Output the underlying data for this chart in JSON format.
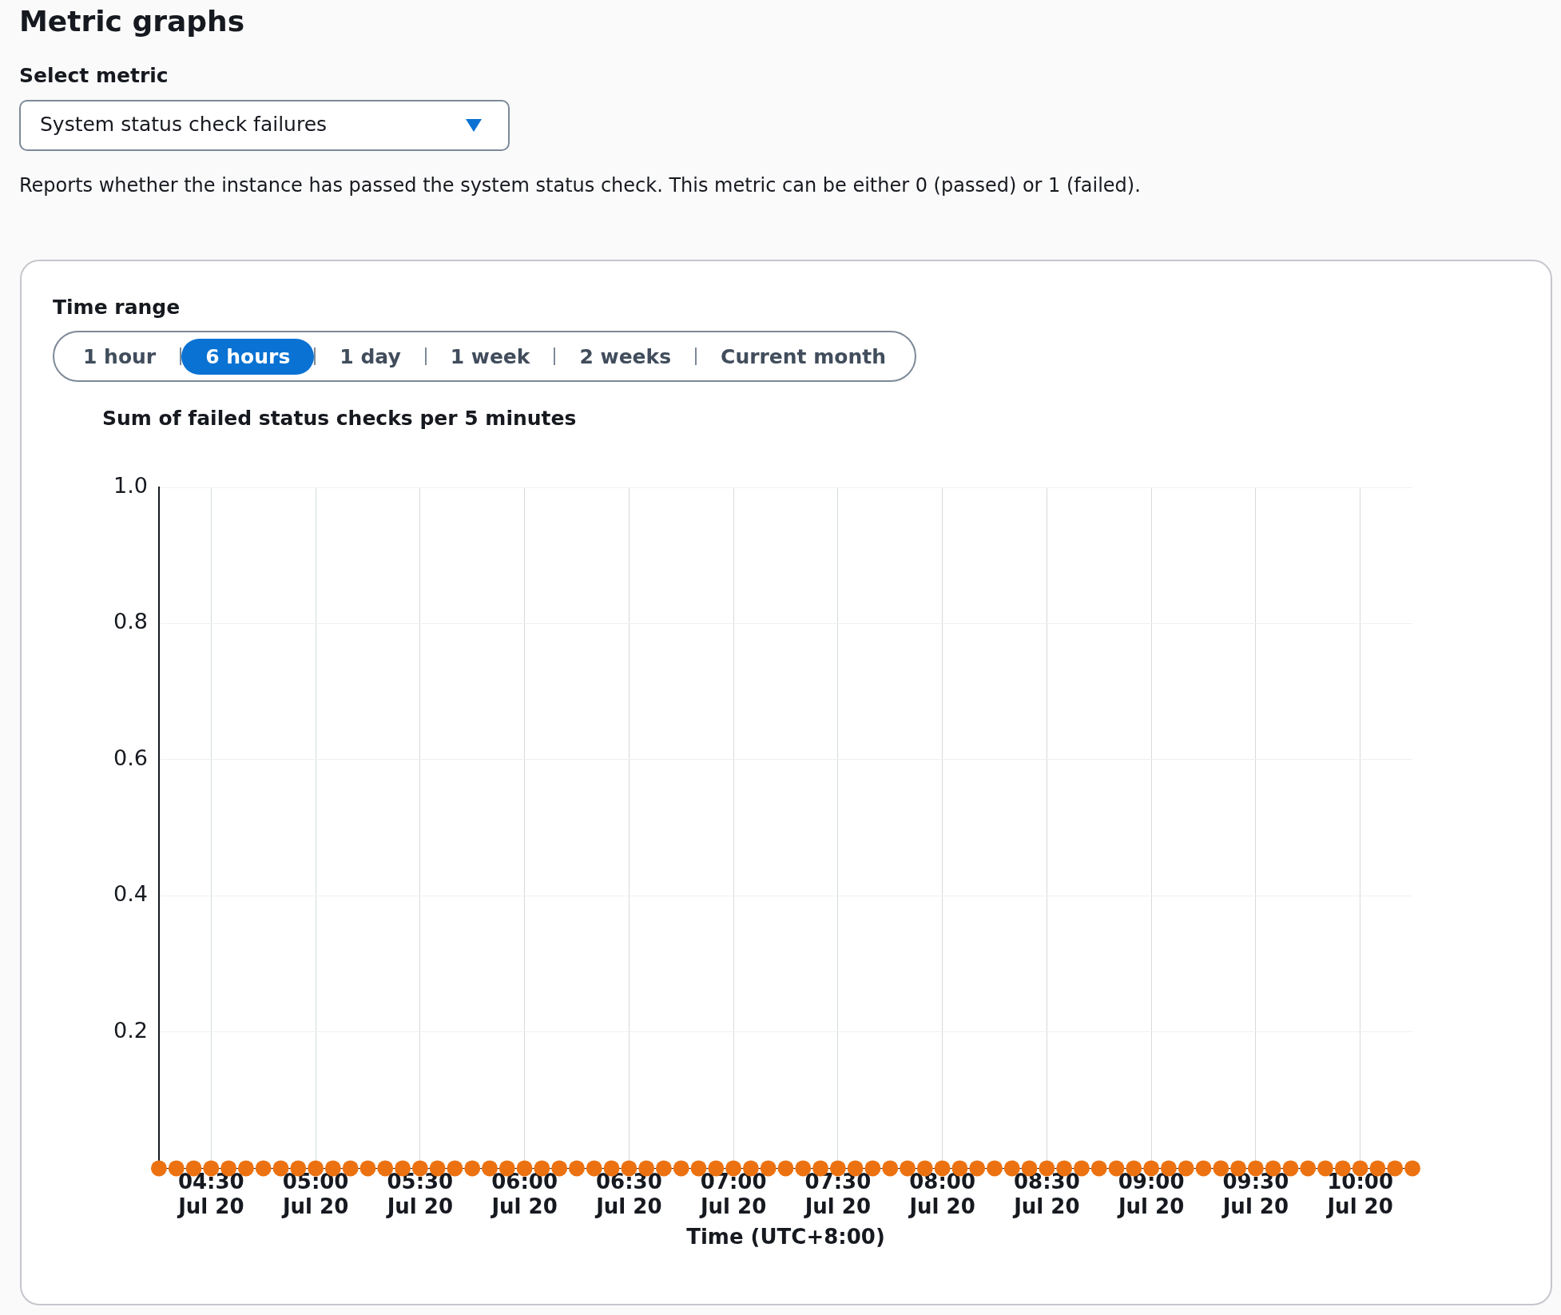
{
  "chart_data": {
    "type": "scatter",
    "title": "Sum of failed status checks per 5 minutes",
    "xlabel": "Time (UTC+8:00)",
    "annotations": [
      "Metric graphs",
      "Select metric",
      "System status check failures",
      "Reports whether the instance has passed the system status check. This metric can be either 0 (passed) or 1 (failed).",
      "Time range",
      "1 hour",
      "6 hours",
      "1 day",
      "1 week",
      "2 weeks",
      "Current month"
    ],
    "categories": [
      null,
      null,
      null,
      "04:30\nJul 20",
      null,
      null,
      null,
      null,
      null,
      "05:00\nJul 20",
      null,
      null,
      null,
      null,
      null,
      "05:30\nJul 20",
      null,
      null,
      null,
      null,
      null,
      "06:00\nJul 20",
      null,
      null,
      null,
      null,
      null,
      "06:30\nJul 20",
      null,
      null,
      null,
      null,
      null,
      "07:00\nJul 20",
      null,
      null,
      null,
      null,
      null,
      "07:30\nJul 20",
      null,
      null,
      null,
      null,
      null,
      "08:00\nJul 20",
      null,
      null,
      null,
      null,
      null,
      "08:30\nJul 20",
      null,
      null,
      null,
      null,
      null,
      "09:00\nJul 20",
      null,
      null,
      null,
      null,
      null,
      "09:30\nJul 20",
      null,
      null,
      null,
      null,
      null,
      "10:00\nJul 20",
      null,
      null,
      null
    ],
    "series": [
      {
        "color": "#ec7211",
        "values": [
          0,
          0,
          0,
          0,
          0,
          0,
          0,
          0,
          0,
          0,
          0,
          0,
          0,
          0,
          0,
          0,
          0,
          0,
          0,
          0,
          0,
          0,
          0,
          0,
          0,
          0,
          0,
          0,
          0,
          0,
          0,
          0,
          0,
          0,
          0,
          0,
          0,
          0,
          0,
          0,
          0,
          0,
          0,
          0,
          0,
          0,
          0,
          0,
          0,
          0,
          0,
          0,
          0,
          0,
          0,
          0,
          0,
          0,
          0,
          0,
          0,
          0,
          0,
          0,
          0,
          0,
          0,
          0,
          0,
          0,
          0,
          0,
          0
        ]
      }
    ],
    "ylim": [
      0,
      1
    ],
    "yticks": [
      0.2,
      0.4,
      0.6,
      0.8,
      {
        "value": 1,
        "label": "1.0"
      }
    ],
    "grid": true,
    "legend": false,
    "marker": "circle"
  }
}
